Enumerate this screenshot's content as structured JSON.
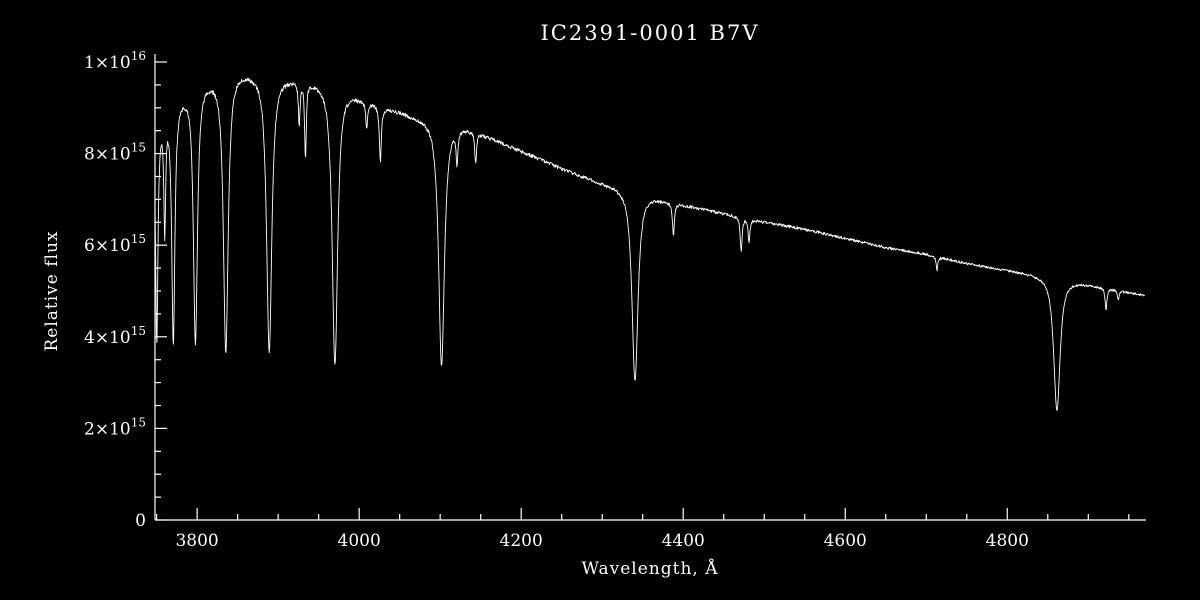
{
  "page": {
    "background": "#000000",
    "foreground": "#ffffff"
  },
  "chart_data": {
    "type": "line",
    "title": "IC2391-0001  B7V",
    "xlabel": "Wavelength, Å",
    "ylabel": "Relative flux",
    "xlim": [
      3748,
      4970
    ],
    "ylim": [
      0,
      1e+16
    ],
    "grid": false,
    "legend": false,
    "line_color": "#ffffff",
    "x_major_ticks": [
      {
        "value": 3800,
        "label": "3800"
      },
      {
        "value": 4000,
        "label": "4000"
      },
      {
        "value": 4200,
        "label": "4200"
      },
      {
        "value": 4400,
        "label": "4400"
      },
      {
        "value": 4600,
        "label": "4600"
      },
      {
        "value": 4800,
        "label": "4800"
      }
    ],
    "x_minor_step": 50,
    "y_major_ticks": [
      {
        "value": 0,
        "mantissa": "0",
        "exponent": ""
      },
      {
        "value": 2000000000000000.0,
        "mantissa": "2×10",
        "exponent": "15"
      },
      {
        "value": 4000000000000000.0,
        "mantissa": "4×10",
        "exponent": "15"
      },
      {
        "value": 6000000000000000.0,
        "mantissa": "6×10",
        "exponent": "15"
      },
      {
        "value": 8000000000000000.0,
        "mantissa": "8×10",
        "exponent": "15"
      },
      {
        "value": 1e+16,
        "mantissa": "1×10",
        "exponent": "16"
      }
    ],
    "y_minor_step": 500000000000000.0,
    "series": {
      "name": "IC2391-0001 B7V spectrum",
      "continuum_anchors": [
        [
          3748,
          8400000000000000.0
        ],
        [
          3756,
          8700000000000000.0
        ],
        [
          3766,
          8950000000000000.0
        ],
        [
          3778,
          9150000000000000.0
        ],
        [
          3795,
          9400000000000000.0
        ],
        [
          3815,
          9550000000000000.0
        ],
        [
          3835,
          9650000000000000.0
        ],
        [
          3855,
          9750000000000000.0
        ],
        [
          3875,
          9700000000000000.0
        ],
        [
          3895,
          9650000000000000.0
        ],
        [
          3915,
          9600000000000000.0
        ],
        [
          3935,
          9550000000000000.0
        ],
        [
          3955,
          9500000000000000.0
        ],
        [
          3975,
          9400000000000000.0
        ],
        [
          4000,
          9200000000000000.0
        ],
        [
          4030,
          9000000000000000.0
        ],
        [
          4060,
          8850000000000000.0
        ],
        [
          4100,
          8650000000000000.0
        ],
        [
          4140,
          8500000000000000.0
        ],
        [
          4180,
          8200000000000000.0
        ],
        [
          4220,
          7900000000000000.0
        ],
        [
          4260,
          7600000000000000.0
        ],
        [
          4300,
          7350000000000000.0
        ],
        [
          4340,
          7150000000000000.0
        ],
        [
          4380,
          6950000000000000.0
        ],
        [
          4420,
          6800000000000000.0
        ],
        [
          4460,
          6650000000000000.0
        ],
        [
          4500,
          6500000000000000.0
        ],
        [
          4550,
          6350000000000000.0
        ],
        [
          4600,
          6150000000000000.0
        ],
        [
          4650,
          5950000000000000.0
        ],
        [
          4700,
          5800000000000000.0
        ],
        [
          4750,
          5600000000000000.0
        ],
        [
          4800,
          5450000000000000.0
        ],
        [
          4850,
          5300000000000000.0
        ],
        [
          4880,
          5200000000000000.0
        ],
        [
          4910,
          5100000000000000.0
        ],
        [
          4940,
          5000000000000000.0
        ],
        [
          4970,
          4900000000000000.0
        ]
      ],
      "absorption_lines": [
        {
          "center": 3734.4,
          "depth": 0.55,
          "width": 2.0,
          "id": "H13"
        },
        {
          "center": 3750.2,
          "depth": 0.54,
          "width": 1.9,
          "id": "H12"
        },
        {
          "center": 3760.0,
          "depth": 0.28,
          "width": 1.5,
          "id": "crowding"
        },
        {
          "center": 3770.6,
          "depth": 0.57,
          "width": 2.6,
          "id": "H11"
        },
        {
          "center": 3797.9,
          "depth": 0.59,
          "width": 3.4,
          "id": "H10"
        },
        {
          "center": 3835.4,
          "depth": 0.62,
          "width": 4.0,
          "id": "H9"
        },
        {
          "center": 3889.0,
          "depth": 0.62,
          "width": 4.4,
          "id": "H8"
        },
        {
          "center": 3926.0,
          "depth": 0.1,
          "width": 1.3,
          "id": "HeI-3927"
        },
        {
          "center": 3933.7,
          "depth": 0.17,
          "width": 1.4,
          "id": "CaII-K"
        },
        {
          "center": 3970.1,
          "depth": 0.64,
          "width": 4.6,
          "id": "H-epsilon"
        },
        {
          "center": 4009.3,
          "depth": 0.06,
          "width": 1.5,
          "id": "HeI-4009"
        },
        {
          "center": 4026.2,
          "depth": 0.13,
          "width": 1.7,
          "id": "HeI-4026"
        },
        {
          "center": 4101.7,
          "depth": 0.61,
          "width": 4.9,
          "id": "H-delta"
        },
        {
          "center": 4120.8,
          "depth": 0.08,
          "width": 1.5,
          "id": "HeI-4121"
        },
        {
          "center": 4143.8,
          "depth": 0.08,
          "width": 1.5,
          "id": "HeI-4144"
        },
        {
          "center": 4340.5,
          "depth": 0.575,
          "width": 5.1,
          "id": "H-gamma"
        },
        {
          "center": 4387.9,
          "depth": 0.1,
          "width": 1.6,
          "id": "HeI-4388"
        },
        {
          "center": 4471.5,
          "depth": 0.11,
          "width": 1.7,
          "id": "HeI-4471"
        },
        {
          "center": 4481.2,
          "depth": 0.08,
          "width": 1.4,
          "id": "MgII-4481"
        },
        {
          "center": 4713.2,
          "depth": 0.05,
          "width": 1.5,
          "id": "HeI-4713"
        },
        {
          "center": 4861.3,
          "depth": 0.545,
          "width": 5.4,
          "id": "H-beta"
        },
        {
          "center": 4921.9,
          "depth": 0.09,
          "width": 1.6,
          "id": "HeI-4922"
        },
        {
          "center": 4937.0,
          "depth": 0.04,
          "width": 1.3,
          "id": "weak"
        }
      ],
      "noise_frac": 0.005,
      "sample_step": 0.6
    }
  }
}
